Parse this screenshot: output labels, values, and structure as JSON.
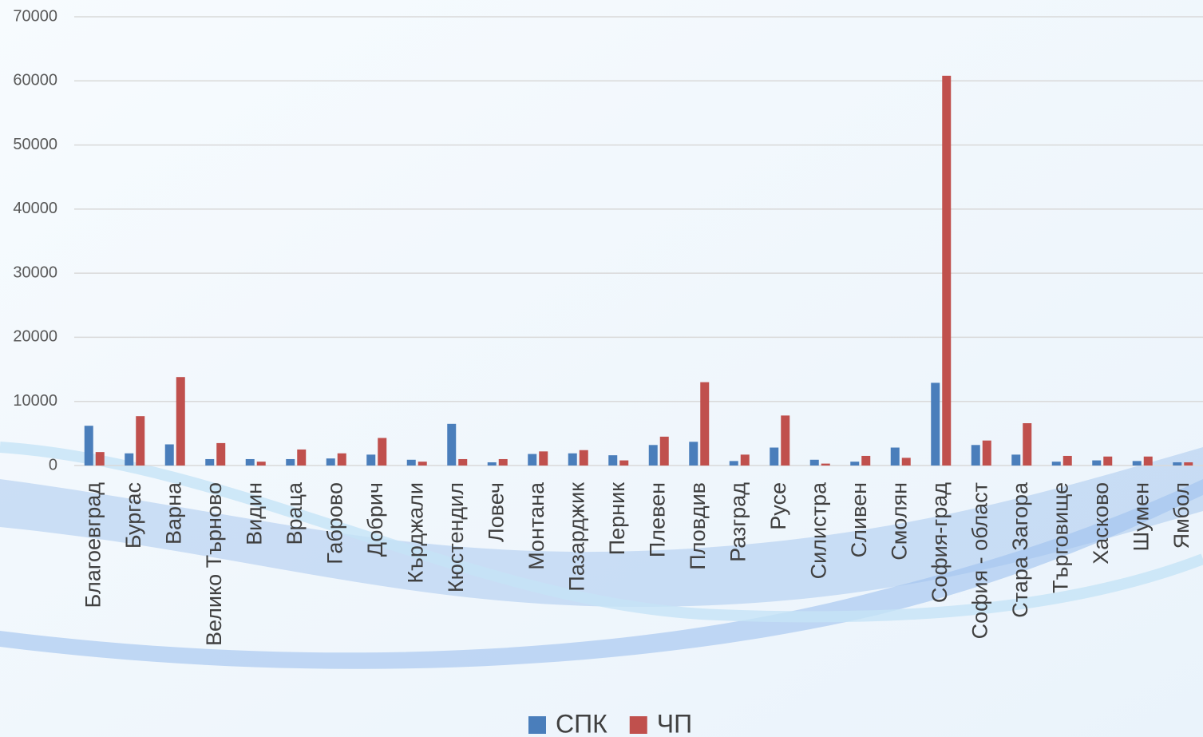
{
  "chart_data": {
    "type": "bar",
    "categories": [
      "Благоевград",
      "Бургас",
      "Варна",
      "Велико Търново",
      "Видин",
      "Враца",
      "Габрово",
      "Добрич",
      "Кърджали",
      "Кюстендил",
      "Ловеч",
      "Монтана",
      "Пазарджик",
      "Перник",
      "Плевен",
      "Пловдив",
      "Разград",
      "Русе",
      "Силистра",
      "Сливен",
      "Смолян",
      "София-град",
      "София - област",
      "Стара Загора",
      "Търговище",
      "Хасково",
      "Шумен",
      "Ямбол"
    ],
    "series": [
      {
        "name": "СПК",
        "color": "#4a7ebb",
        "values": [
          6200,
          1900,
          3300,
          1000,
          1000,
          1000,
          1100,
          1700,
          900,
          6500,
          500,
          1800,
          1900,
          1600,
          3200,
          3700,
          700,
          2800,
          900,
          600,
          2800,
          12900,
          3200,
          1700,
          600,
          800,
          700,
          500
        ]
      },
      {
        "name": "ЧП",
        "color": "#c0504d",
        "values": [
          2100,
          7700,
          13800,
          3500,
          600,
          2500,
          1900,
          4300,
          600,
          1000,
          1000,
          2200,
          2400,
          800,
          4500,
          13000,
          1700,
          7800,
          300,
          1500,
          1200,
          60800,
          3900,
          6600,
          1500,
          1400,
          1400,
          500
        ]
      }
    ],
    "ylim": [
      0,
      70000
    ],
    "yticks": [
      0,
      10000,
      20000,
      30000,
      40000,
      50000,
      60000,
      70000
    ],
    "grid": true,
    "legend": "bottom"
  }
}
